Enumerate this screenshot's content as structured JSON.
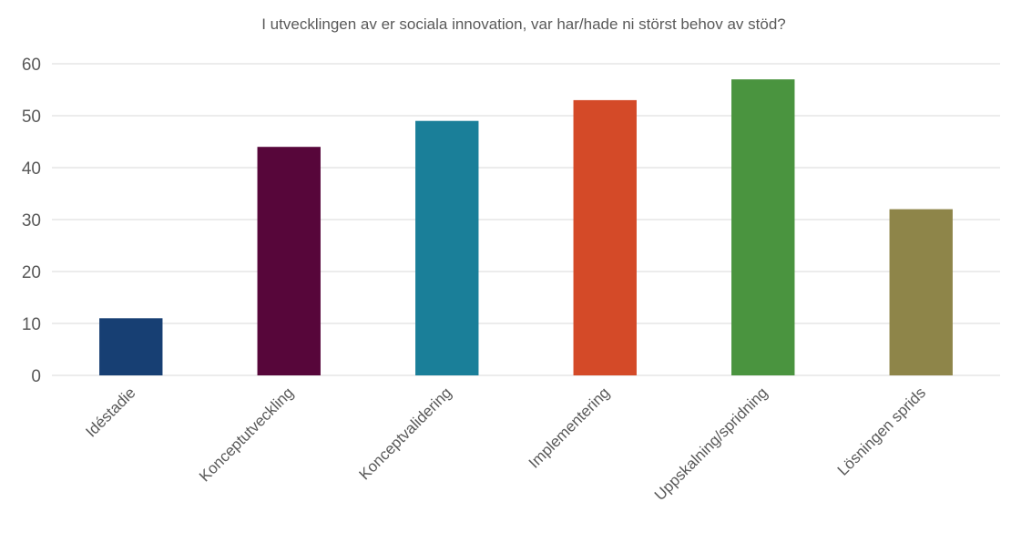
{
  "chart_data": {
    "type": "bar",
    "title": "I utvecklingen av er sociala innovation, var har/hade ni störst behov av stöd?",
    "xlabel": "",
    "ylabel": "",
    "categories": [
      "Idéstadie",
      "Konceptutveckling",
      "Konceptvalidering",
      "Implementering",
      "Uppskalning/spridning",
      "Lösningen sprids"
    ],
    "values": [
      11,
      44,
      49,
      53,
      57,
      32
    ],
    "colors": [
      "#173f73",
      "#57063a",
      "#1a7f99",
      "#d44a28",
      "#4a943f",
      "#8e8549"
    ],
    "ylim": [
      0,
      60
    ],
    "yticks": [
      0,
      10,
      20,
      30,
      40,
      50,
      60
    ],
    "grid": true,
    "legend": "none"
  }
}
